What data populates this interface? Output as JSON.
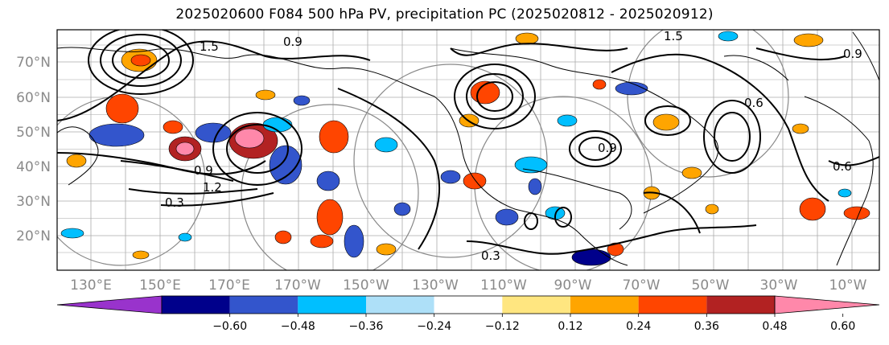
{
  "title": "2025020600 F084 500 hPa PV, precipitation PC (2025020812 - 2025020912)",
  "latitude_labels": [
    "70°N",
    "60°N",
    "50°N",
    "40°N",
    "30°N",
    "20°N"
  ],
  "longitude_labels": [
    "130°E",
    "150°E",
    "170°E",
    "170°W",
    "150°W",
    "130°W",
    "110°W",
    "90°W",
    "70°W",
    "50°W",
    "30°W",
    "10°W"
  ],
  "contour_labels": [
    "1.5",
    "0.9",
    "1.5",
    "0.9",
    "0.9",
    "1.2",
    "0.3",
    "0.3",
    "0.6",
    "0.6",
    "0.9"
  ],
  "colorbar": {
    "tick_labels": [
      "−0.60",
      "−0.48",
      "−0.36",
      "−0.24",
      "−0.12",
      "0.12",
      "0.24",
      "0.36",
      "0.48",
      "0.60"
    ],
    "colors": [
      "#9933cc",
      "#00008b",
      "#3355cc",
      "#00bfff",
      "#aee0f8",
      "#ffffff",
      "#ffe680",
      "#ffa500",
      "#ff4500",
      "#b22222",
      "#ff88aa"
    ]
  }
}
